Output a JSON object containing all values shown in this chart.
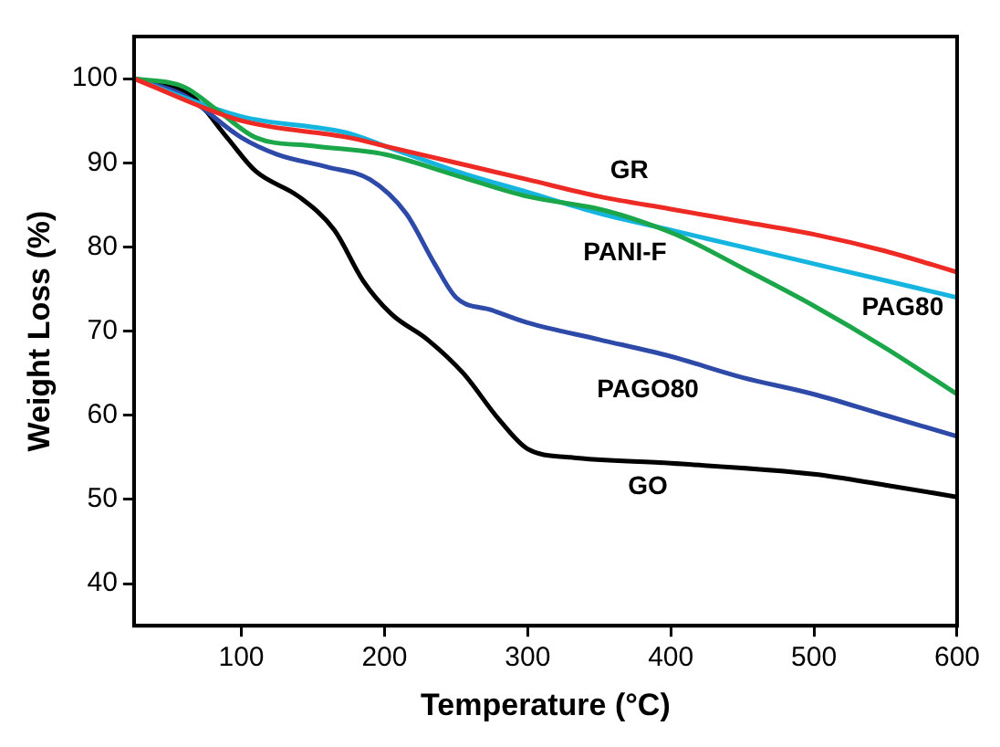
{
  "chart_data": {
    "type": "line",
    "xlabel": "Temperature (°C)",
    "ylabel": "Weight Loss (%)",
    "xlim": [
      25,
      600
    ],
    "xticks": [
      100,
      200,
      300,
      400,
      500,
      600
    ],
    "ylim": [
      35,
      105
    ],
    "yticks": [
      40,
      50,
      60,
      70,
      80,
      90,
      100
    ],
    "grid": false,
    "legend": false,
    "marker": "none",
    "line_style": "solid",
    "series": [
      {
        "name": "GR",
        "color": "#ee2a24",
        "x": [
          25,
          100,
          175,
          200,
          250,
          300,
          350,
          400,
          450,
          500,
          550,
          600
        ],
        "values": [
          100,
          95,
          93,
          92,
          90,
          88,
          86,
          84.5,
          83,
          81.5,
          79.5,
          77
        ]
      },
      {
        "name": "PANI-F",
        "color": "#1ba64a",
        "x": [
          25,
          60,
          85,
          110,
          150,
          200,
          250,
          300,
          350,
          380,
          410,
          450,
          500,
          550,
          600
        ],
        "values": [
          100,
          99,
          96,
          93,
          92,
          91,
          88.5,
          86,
          84.5,
          83,
          81,
          77.5,
          73,
          68,
          62.5
        ]
      },
      {
        "name": "PAG80",
        "color": "#15b5e0",
        "x": [
          25,
          100,
          175,
          200,
          250,
          300,
          350,
          400,
          450,
          500,
          550,
          600
        ],
        "values": [
          100,
          95.5,
          93.5,
          92,
          89,
          86.5,
          84,
          82,
          80,
          78,
          76,
          74
        ]
      },
      {
        "name": "PAGO80",
        "color": "#2e4aa8",
        "x": [
          25,
          60,
          100,
          125,
          160,
          190,
          215,
          235,
          250,
          275,
          300,
          350,
          400,
          450,
          500,
          550,
          600
        ],
        "values": [
          100,
          98,
          93,
          91,
          89.5,
          88,
          84,
          78,
          74,
          72.5,
          71,
          69,
          67,
          64.5,
          62.5,
          60,
          57.5
        ]
      },
      {
        "name": "GO",
        "color": "#000000",
        "x": [
          25,
          65,
          90,
          110,
          140,
          165,
          185,
          205,
          230,
          255,
          280,
          300,
          330,
          400,
          500,
          550,
          600
        ],
        "values": [
          100,
          98,
          93,
          89,
          86,
          82,
          76,
          72,
          69,
          65,
          59.5,
          56,
          55,
          54.3,
          53,
          51.7,
          50.3
        ]
      }
    ]
  }
}
